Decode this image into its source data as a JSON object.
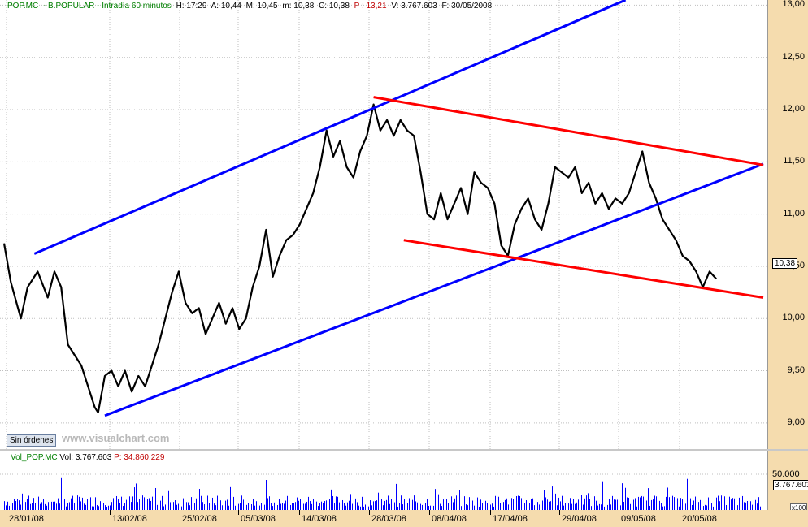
{
  "header": {
    "symbol": "POP.MC",
    "name": "- B.POPULAR - Intradía 60 minutos",
    "h": "H: 17:29",
    "a": "A: 10,44",
    "m": "M: 10,45",
    "min": "m: 10,38",
    "c": "C: 10,38",
    "p": "P : 13,21",
    "v": "V: 3.767.603",
    "f": "F: 30/05/2008"
  },
  "volume_header": {
    "label": "Vol_POP.MC",
    "vol": "Vol: 3.767.603",
    "p": "P: 34.860.229"
  },
  "orders_button": "Sin órdenes",
  "watermark": "www.visualchart.com",
  "last_price_tag": "10,38",
  "last_volume_tag": "3.767.603",
  "volume_tick": "50.000",
  "volume_scale": "x100",
  "chart_data": {
    "type": "line",
    "price_axis": {
      "ylim": [
        8.75,
        13.05
      ],
      "ticks": [
        "13,00",
        "12,50",
        "12,00",
        "11,50",
        "11,00",
        "10,50",
        "10,00",
        "9,50",
        "9,00"
      ],
      "tick_values": [
        13.0,
        12.5,
        12.0,
        11.5,
        11.0,
        10.5,
        10.0,
        9.5,
        9.0
      ]
    },
    "date_labels": [
      "28/01/08",
      "13/02/08",
      "25/02/08",
      "05/03/08",
      "14/03/08",
      "28/03/08",
      "08/04/08",
      "17/04/08",
      "29/04/08",
      "09/05/08",
      "20/05/08"
    ],
    "price_path": [
      [
        0,
        10.72
      ],
      [
        2,
        10.35
      ],
      [
        5,
        10.0
      ],
      [
        7,
        10.3
      ],
      [
        10,
        10.45
      ],
      [
        13,
        10.2
      ],
      [
        15,
        10.45
      ],
      [
        17,
        10.3
      ],
      [
        19,
        9.75
      ],
      [
        21,
        9.65
      ],
      [
        23,
        9.55
      ],
      [
        25,
        9.35
      ],
      [
        27,
        9.15
      ],
      [
        28,
        9.1
      ],
      [
        30,
        9.45
      ],
      [
        32,
        9.5
      ],
      [
        34,
        9.35
      ],
      [
        36,
        9.5
      ],
      [
        38,
        9.3
      ],
      [
        40,
        9.45
      ],
      [
        42,
        9.35
      ],
      [
        44,
        9.55
      ],
      [
        46,
        9.75
      ],
      [
        48,
        10.0
      ],
      [
        50,
        10.25
      ],
      [
        52,
        10.45
      ],
      [
        54,
        10.15
      ],
      [
        56,
        10.05
      ],
      [
        58,
        10.1
      ],
      [
        60,
        9.85
      ],
      [
        62,
        10.0
      ],
      [
        64,
        10.15
      ],
      [
        66,
        9.95
      ],
      [
        68,
        10.1
      ],
      [
        70,
        9.9
      ],
      [
        72,
        10.0
      ],
      [
        74,
        10.3
      ],
      [
        76,
        10.5
      ],
      [
        78,
        10.85
      ],
      [
        80,
        10.4
      ],
      [
        82,
        10.6
      ],
      [
        84,
        10.75
      ],
      [
        86,
        10.8
      ],
      [
        88,
        10.9
      ],
      [
        90,
        11.05
      ],
      [
        92,
        11.2
      ],
      [
        94,
        11.45
      ],
      [
        96,
        11.8
      ],
      [
        98,
        11.55
      ],
      [
        100,
        11.7
      ],
      [
        102,
        11.45
      ],
      [
        104,
        11.35
      ],
      [
        106,
        11.6
      ],
      [
        108,
        11.75
      ],
      [
        110,
        12.05
      ],
      [
        112,
        11.8
      ],
      [
        114,
        11.9
      ],
      [
        116,
        11.75
      ],
      [
        118,
        11.9
      ],
      [
        120,
        11.8
      ],
      [
        122,
        11.75
      ],
      [
        124,
        11.4
      ],
      [
        126,
        11.0
      ],
      [
        128,
        10.95
      ],
      [
        130,
        11.2
      ],
      [
        132,
        10.95
      ],
      [
        134,
        11.1
      ],
      [
        136,
        11.25
      ],
      [
        138,
        11.0
      ],
      [
        140,
        11.4
      ],
      [
        142,
        11.3
      ],
      [
        144,
        11.25
      ],
      [
        146,
        11.1
      ],
      [
        148,
        10.7
      ],
      [
        150,
        10.6
      ],
      [
        152,
        10.9
      ],
      [
        154,
        11.05
      ],
      [
        156,
        11.15
      ],
      [
        158,
        10.95
      ],
      [
        160,
        10.85
      ],
      [
        162,
        11.1
      ],
      [
        164,
        11.45
      ],
      [
        166,
        11.4
      ],
      [
        168,
        11.35
      ],
      [
        170,
        11.45
      ],
      [
        172,
        11.2
      ],
      [
        174,
        11.3
      ],
      [
        176,
        11.1
      ],
      [
        178,
        11.2
      ],
      [
        180,
        11.05
      ],
      [
        182,
        11.15
      ],
      [
        184,
        11.1
      ],
      [
        186,
        11.2
      ],
      [
        188,
        11.4
      ],
      [
        190,
        11.6
      ],
      [
        192,
        11.3
      ],
      [
        194,
        11.15
      ],
      [
        196,
        10.95
      ],
      [
        198,
        10.85
      ],
      [
        200,
        10.75
      ],
      [
        202,
        10.6
      ],
      [
        204,
        10.55
      ],
      [
        206,
        10.45
      ],
      [
        208,
        10.3
      ],
      [
        210,
        10.45
      ],
      [
        212,
        10.38
      ]
    ],
    "trend_lines": [
      {
        "color": "#0000ff",
        "points": [
          [
            9,
            10.62
          ],
          [
            185,
            13.05
          ]
        ]
      },
      {
        "color": "#0000ff",
        "points": [
          [
            30,
            9.07
          ],
          [
            226,
            11.48
          ]
        ]
      },
      {
        "color": "#ff0000",
        "points": [
          [
            110,
            12.12
          ],
          [
            226,
            11.47
          ]
        ]
      },
      {
        "color": "#ff0000",
        "points": [
          [
            119,
            10.75
          ],
          [
            226,
            10.2
          ]
        ]
      }
    ],
    "volume": {
      "max": 60000,
      "tick": 50000
    }
  }
}
